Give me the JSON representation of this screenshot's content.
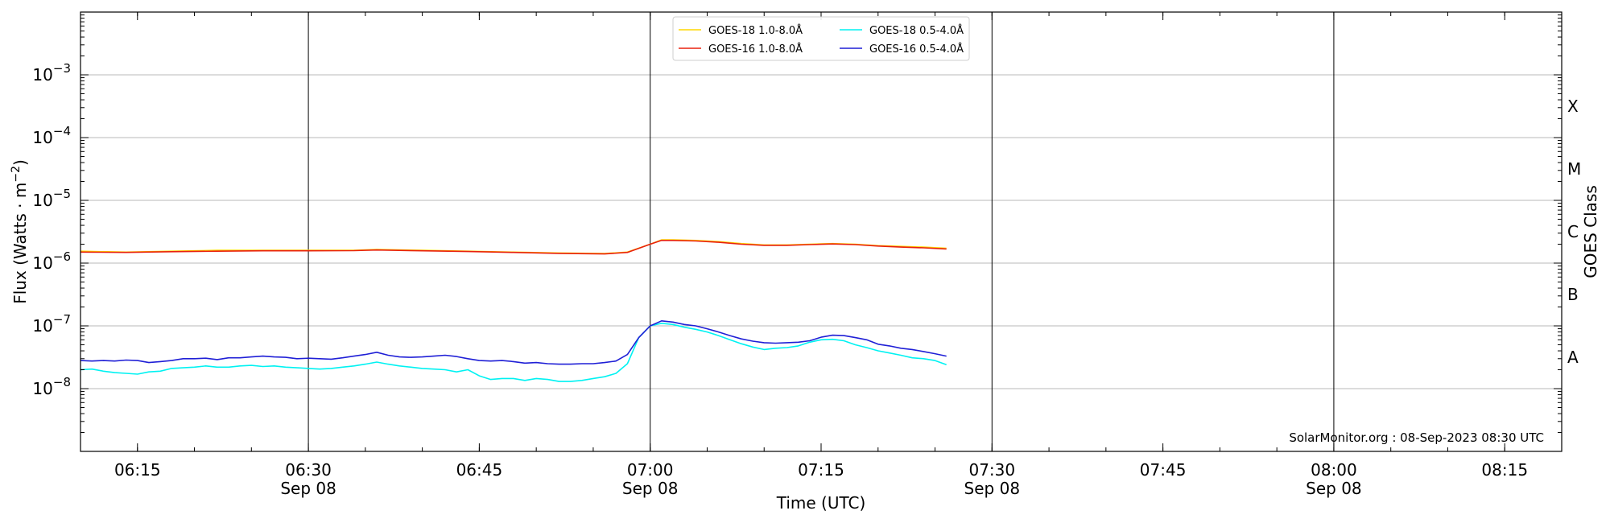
{
  "chart_data": {
    "type": "line",
    "xlabel": "Time (UTC)",
    "ylabel_base": "Flux (Watts · m",
    "ylabel_sup": "−2",
    "ylabel_close": ")",
    "y2label": "GOES Class",
    "y_scale": "log",
    "ylim": [
      1e-09,
      0.01
    ],
    "xlim": [
      "06:10",
      "08:20"
    ],
    "grid": "horizontal at decades, vertical at half hours",
    "legend_placement": "top-center",
    "credit": "SolarMonitor.org : 08-Sep-2023 08:30 UTC",
    "y_ticks": [
      {
        "value": 1e-08,
        "base": "10",
        "exp": "−8"
      },
      {
        "value": 1e-07,
        "base": "10",
        "exp": "−7"
      },
      {
        "value": 1e-06,
        "base": "10",
        "exp": "−6"
      },
      {
        "value": 1e-05,
        "base": "10",
        "exp": "−5"
      },
      {
        "value": 0.0001,
        "base": "10",
        "exp": "−4"
      },
      {
        "value": 0.001,
        "base": "10",
        "exp": "−3"
      }
    ],
    "x_ticks": [
      {
        "time": "06:15",
        "label": "06:15",
        "date": ""
      },
      {
        "time": "06:30",
        "label": "06:30",
        "date": "Sep 08"
      },
      {
        "time": "06:45",
        "label": "06:45",
        "date": ""
      },
      {
        "time": "07:00",
        "label": "07:00",
        "date": "Sep 08"
      },
      {
        "time": "07:15",
        "label": "07:15",
        "date": ""
      },
      {
        "time": "07:30",
        "label": "07:30",
        "date": "Sep 08"
      },
      {
        "time": "07:45",
        "label": "07:45",
        "date": ""
      },
      {
        "time": "08:00",
        "label": "08:00",
        "date": "Sep 08"
      },
      {
        "time": "08:15",
        "label": "08:15",
        "date": ""
      }
    ],
    "goes_classes": [
      {
        "label": "A",
        "value": 3.16e-08
      },
      {
        "label": "B",
        "value": 3.16e-07
      },
      {
        "label": "C",
        "value": 3.16e-06
      },
      {
        "label": "M",
        "value": 3.16e-05
      },
      {
        "label": "X",
        "value": 0.000316
      }
    ],
    "series": [
      {
        "name": "GOES-18 1.0-8.0Å",
        "color": "#ffd700",
        "x": [
          "06:10",
          "06:14",
          "06:18",
          "06:22",
          "06:26",
          "06:30",
          "06:34",
          "06:36",
          "06:40",
          "06:44",
          "06:48",
          "06:52",
          "06:56",
          "06:58",
          "07:00",
          "07:01",
          "07:02",
          "07:04",
          "07:06",
          "07:08",
          "07:10",
          "07:12",
          "07:14",
          "07:16",
          "07:18",
          "07:20",
          "07:22",
          "07:24",
          "07:26"
        ],
        "y": [
          1.55e-06,
          1.5e-06,
          1.55e-06,
          1.6e-06,
          1.6e-06,
          1.6e-06,
          1.6e-06,
          1.65e-06,
          1.6e-06,
          1.55e-06,
          1.5e-06,
          1.45e-06,
          1.42e-06,
          1.5e-06,
          2e-06,
          2.35e-06,
          2.35e-06,
          2.3e-06,
          2.2e-06,
          2.05e-06,
          1.95e-06,
          1.95e-06,
          2e-06,
          2.05e-06,
          2e-06,
          1.9e-06,
          1.85e-06,
          1.8e-06,
          1.72e-06
        ]
      },
      {
        "name": "GOES-16 1.0-8.0Å",
        "color": "#e8210e",
        "x": [
          "06:10",
          "06:14",
          "06:18",
          "06:22",
          "06:26",
          "06:30",
          "06:34",
          "06:36",
          "06:40",
          "06:44",
          "06:48",
          "06:52",
          "06:56",
          "06:58",
          "07:00",
          "07:01",
          "07:02",
          "07:04",
          "07:06",
          "07:08",
          "07:10",
          "07:12",
          "07:14",
          "07:16",
          "07:18",
          "07:20",
          "07:22",
          "07:24",
          "07:26"
        ],
        "y": [
          1.5e-06,
          1.48e-06,
          1.52e-06,
          1.55e-06,
          1.57e-06,
          1.57e-06,
          1.58e-06,
          1.62e-06,
          1.57e-06,
          1.53e-06,
          1.48e-06,
          1.43e-06,
          1.4e-06,
          1.48e-06,
          2e-06,
          2.3e-06,
          2.3e-06,
          2.25e-06,
          2.15e-06,
          2e-06,
          1.92e-06,
          1.92e-06,
          1.97e-06,
          2.02e-06,
          1.97e-06,
          1.87e-06,
          1.8e-06,
          1.75e-06,
          1.68e-06
        ]
      },
      {
        "name": "GOES-18 0.5-4.0Å",
        "color": "#00f2f2",
        "x": [
          "06:10",
          "06:11",
          "06:12",
          "06:13",
          "06:14",
          "06:15",
          "06:16",
          "06:17",
          "06:18",
          "06:19",
          "06:20",
          "06:21",
          "06:22",
          "06:23",
          "06:24",
          "06:25",
          "06:26",
          "06:27",
          "06:28",
          "06:29",
          "06:30",
          "06:31",
          "06:32",
          "06:33",
          "06:34",
          "06:35",
          "06:36",
          "06:37",
          "06:38",
          "06:39",
          "06:40",
          "06:41",
          "06:42",
          "06:43",
          "06:44",
          "06:45",
          "06:46",
          "06:47",
          "06:48",
          "06:49",
          "06:50",
          "06:51",
          "06:52",
          "06:53",
          "06:54",
          "06:55",
          "06:56",
          "06:57",
          "06:58",
          "06:59",
          "07:00",
          "07:01",
          "07:02",
          "07:03",
          "07:04",
          "07:05",
          "07:06",
          "07:07",
          "07:08",
          "07:09",
          "07:10",
          "07:11",
          "07:12",
          "07:13",
          "07:14",
          "07:15",
          "07:16",
          "07:17",
          "07:18",
          "07:19",
          "07:20",
          "07:21",
          "07:22",
          "07:23",
          "07:24",
          "07:25",
          "07:26"
        ],
        "y": [
          2e-08,
          2.05e-08,
          1.9e-08,
          1.8e-08,
          1.75e-08,
          1.7e-08,
          1.85e-08,
          1.9e-08,
          2.1e-08,
          2.15e-08,
          2.2e-08,
          2.3e-08,
          2.2e-08,
          2.2e-08,
          2.3e-08,
          2.35e-08,
          2.25e-08,
          2.3e-08,
          2.2e-08,
          2.15e-08,
          2.1e-08,
          2.05e-08,
          2.1e-08,
          2.2e-08,
          2.3e-08,
          2.45e-08,
          2.65e-08,
          2.45e-08,
          2.3e-08,
          2.2e-08,
          2.1e-08,
          2.05e-08,
          2e-08,
          1.85e-08,
          2e-08,
          1.6e-08,
          1.4e-08,
          1.45e-08,
          1.45e-08,
          1.35e-08,
          1.45e-08,
          1.4e-08,
          1.3e-08,
          1.3e-08,
          1.35e-08,
          1.45e-08,
          1.55e-08,
          1.75e-08,
          2.5e-08,
          6.5e-08,
          1e-07,
          1.1e-07,
          1.05e-07,
          9.5e-08,
          8.8e-08,
          8e-08,
          7e-08,
          6e-08,
          5.2e-08,
          4.6e-08,
          4.2e-08,
          4.4e-08,
          4.5e-08,
          4.8e-08,
          5.5e-08,
          6e-08,
          6.1e-08,
          5.8e-08,
          5e-08,
          4.5e-08,
          4e-08,
          3.7e-08,
          3.4e-08,
          3.1e-08,
          3e-08,
          2.8e-08,
          2.4e-08
        ]
      },
      {
        "name": "GOES-16 0.5-4.0Å",
        "color": "#1f1fd6",
        "x": [
          "06:10",
          "06:11",
          "06:12",
          "06:13",
          "06:14",
          "06:15",
          "06:16",
          "06:17",
          "06:18",
          "06:19",
          "06:20",
          "06:21",
          "06:22",
          "06:23",
          "06:24",
          "06:25",
          "06:26",
          "06:27",
          "06:28",
          "06:29",
          "06:30",
          "06:31",
          "06:32",
          "06:33",
          "06:34",
          "06:35",
          "06:36",
          "06:37",
          "06:38",
          "06:39",
          "06:40",
          "06:41",
          "06:42",
          "06:43",
          "06:44",
          "06:45",
          "06:46",
          "06:47",
          "06:48",
          "06:49",
          "06:50",
          "06:51",
          "06:52",
          "06:53",
          "06:54",
          "06:55",
          "06:56",
          "06:57",
          "06:58",
          "06:59",
          "07:00",
          "07:01",
          "07:02",
          "07:03",
          "07:04",
          "07:05",
          "07:06",
          "07:07",
          "07:08",
          "07:09",
          "07:10",
          "07:11",
          "07:12",
          "07:13",
          "07:14",
          "07:15",
          "07:16",
          "07:17",
          "07:18",
          "07:19",
          "07:20",
          "07:21",
          "07:22",
          "07:23",
          "07:24",
          "07:25",
          "07:26"
        ],
        "y": [
          2.8e-08,
          2.75e-08,
          2.8e-08,
          2.75e-08,
          2.85e-08,
          2.8e-08,
          2.6e-08,
          2.7e-08,
          2.8e-08,
          3e-08,
          3e-08,
          3.05e-08,
          2.9e-08,
          3.1e-08,
          3.1e-08,
          3.2e-08,
          3.3e-08,
          3.2e-08,
          3.15e-08,
          3e-08,
          3.05e-08,
          3e-08,
          2.95e-08,
          3.1e-08,
          3.3e-08,
          3.5e-08,
          3.8e-08,
          3.4e-08,
          3.2e-08,
          3.15e-08,
          3.2e-08,
          3.3e-08,
          3.4e-08,
          3.25e-08,
          3e-08,
          2.8e-08,
          2.75e-08,
          2.8e-08,
          2.7e-08,
          2.55e-08,
          2.6e-08,
          2.5e-08,
          2.45e-08,
          2.45e-08,
          2.5e-08,
          2.5e-08,
          2.6e-08,
          2.75e-08,
          3.5e-08,
          6.5e-08,
          1e-07,
          1.2e-07,
          1.15e-07,
          1.05e-07,
          1e-07,
          9e-08,
          8e-08,
          7e-08,
          6.2e-08,
          5.7e-08,
          5.4e-08,
          5.3e-08,
          5.4e-08,
          5.5e-08,
          5.8e-08,
          6.6e-08,
          7.1e-08,
          7e-08,
          6.5e-08,
          6e-08,
          5.1e-08,
          4.8e-08,
          4.4e-08,
          4.2e-08,
          3.9e-08,
          3.6e-08,
          3.3e-08
        ]
      }
    ]
  }
}
